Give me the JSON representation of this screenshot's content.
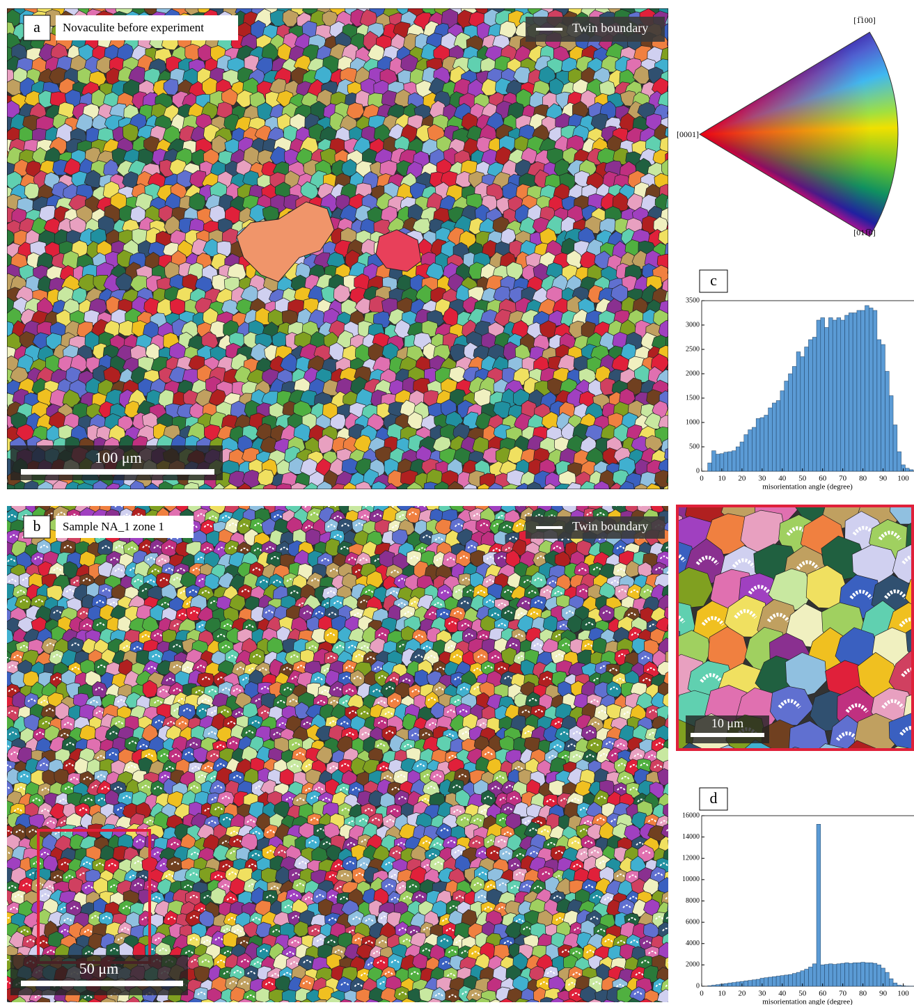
{
  "panels": {
    "a": {
      "label": "a",
      "title": "Novaculite before experiment",
      "legend": "Twin boundary",
      "scale_bar": "100 μm"
    },
    "b": {
      "label": "b",
      "title": "Sample NA_1 zone 1",
      "legend": "Twin boundary",
      "scale_bar": "50 μm",
      "inset_scale_bar": "10 μm"
    },
    "ipf": {
      "top": "[1̅100]",
      "left": "[0001]",
      "bottom": "[011̅0]"
    }
  },
  "chart_data": [
    {
      "type": "histogram",
      "label": "c",
      "x_label": "misorientation angle (degree)",
      "color": "#5b9bd5",
      "bins": [
        3,
        5,
        7,
        9,
        11,
        13,
        15,
        17,
        19,
        21,
        23,
        25,
        27,
        29,
        31,
        33,
        35,
        37,
        39,
        41,
        43,
        45,
        47,
        49,
        51,
        53,
        55,
        57,
        59,
        61,
        63,
        65,
        67,
        69,
        71,
        73,
        75,
        77,
        79,
        81,
        83,
        85,
        87,
        89,
        91,
        93,
        95,
        97,
        99,
        101,
        103,
        105
      ],
      "values": [
        170,
        420,
        350,
        360,
        390,
        400,
        420,
        500,
        600,
        750,
        850,
        900,
        1080,
        1100,
        1150,
        1300,
        1400,
        1450,
        1650,
        1850,
        2000,
        2150,
        2450,
        2350,
        2550,
        2700,
        2750,
        3100,
        3150,
        2950,
        3150,
        3100,
        3150,
        3100,
        3200,
        3250,
        3250,
        3300,
        3300,
        3400,
        3350,
        3300,
        2700,
        2600,
        2050,
        1550,
        950,
        400,
        130,
        60,
        30
      ],
      "xlim": [
        0,
        105
      ],
      "xticks": [
        0,
        10,
        20,
        30,
        40,
        50,
        60,
        70,
        80,
        90,
        100
      ],
      "ylim": [
        0,
        3500
      ],
      "yticks": [
        0,
        500,
        1000,
        1500,
        2000,
        2500,
        3000,
        3500
      ]
    },
    {
      "type": "histogram",
      "label": "d",
      "x_label": "misorientation angle (degree)",
      "color": "#5b9bd5",
      "bins": [
        3,
        5,
        7,
        9,
        11,
        13,
        15,
        17,
        19,
        21,
        23,
        25,
        27,
        29,
        31,
        33,
        35,
        37,
        39,
        41,
        43,
        45,
        47,
        49,
        51,
        53,
        55,
        57,
        59,
        61,
        63,
        65,
        67,
        69,
        71,
        73,
        75,
        77,
        79,
        81,
        83,
        85,
        87,
        89,
        91,
        93,
        95,
        97,
        99,
        101,
        103,
        105
      ],
      "values": [
        50,
        100,
        150,
        200,
        250,
        300,
        350,
        400,
        450,
        500,
        550,
        600,
        650,
        750,
        800,
        850,
        900,
        950,
        1000,
        1050,
        1100,
        1200,
        1300,
        1450,
        1600,
        1800,
        2100,
        15200,
        2000,
        2050,
        2100,
        2050,
        2100,
        2150,
        2200,
        2150,
        2200,
        2200,
        2250,
        2200,
        2200,
        2150,
        2000,
        1700,
        1300,
        700,
        300,
        100,
        50,
        20,
        10
      ],
      "xlim": [
        0,
        105
      ],
      "xticks": [
        0,
        10,
        20,
        30,
        40,
        50,
        60,
        70,
        80,
        90,
        100
      ],
      "ylim": [
        0,
        16000
      ],
      "yticks": [
        0,
        2000,
        4000,
        6000,
        8000,
        10000,
        12000,
        14000,
        16000
      ]
    }
  ]
}
